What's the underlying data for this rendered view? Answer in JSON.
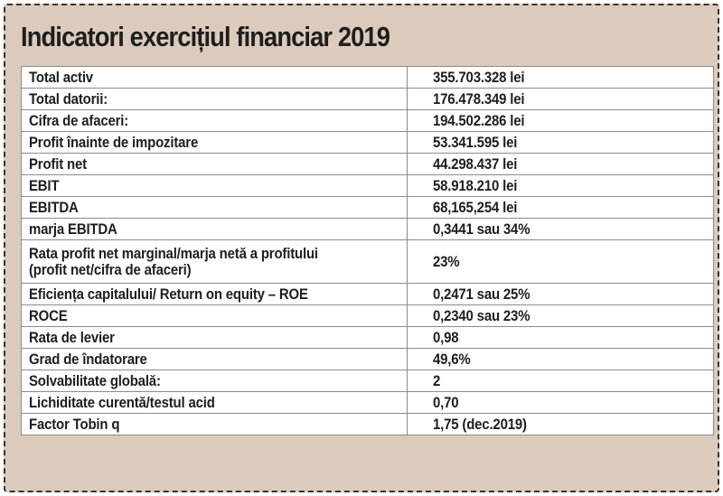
{
  "title": "Indicatori exercițiul financiar 2019",
  "rows": [
    {
      "label": "Total activ",
      "value": "355.703.328 lei"
    },
    {
      "label": "Total datorii:",
      "value": "176.478.349  lei"
    },
    {
      "label": "Cifra de afaceri:",
      "value": "194.502.286 lei"
    },
    {
      "label": "Profit înainte de impozitare",
      "value": " 53.341.595  lei"
    },
    {
      "label": "Profit net",
      "value": "44.298.437 lei"
    },
    {
      "label": "EBIT",
      "value": "58.918.210  lei"
    },
    {
      "label": "EBITDA",
      "value": "68,165,254 lei"
    },
    {
      "label": "marja EBITDA",
      "value": "   0,3441 sau 34%"
    },
    {
      "label": "Rata profit net marginal/marja netă a profitului (profit net/cifra de afaceri)",
      "value": "23%"
    },
    {
      "label": "Eficiența capitalului/ Return on equity – ROE",
      "value": "  0,2471  sau  25%"
    },
    {
      "label": "ROCE",
      "value": "  0,2340 sau 23%"
    },
    {
      "label": "Rata de levier",
      "value": "  0,98"
    },
    {
      "label": "Grad de îndatorare",
      "value": " 49,6%"
    },
    {
      "label": "Solvabilitate globală:",
      "value": "  2"
    },
    {
      "label": "Lichiditate curentă/testul acid",
      "value": "  0,70"
    },
    {
      "label": "Factor Tobin q",
      "value": "1,75 (dec.2019)"
    }
  ]
}
